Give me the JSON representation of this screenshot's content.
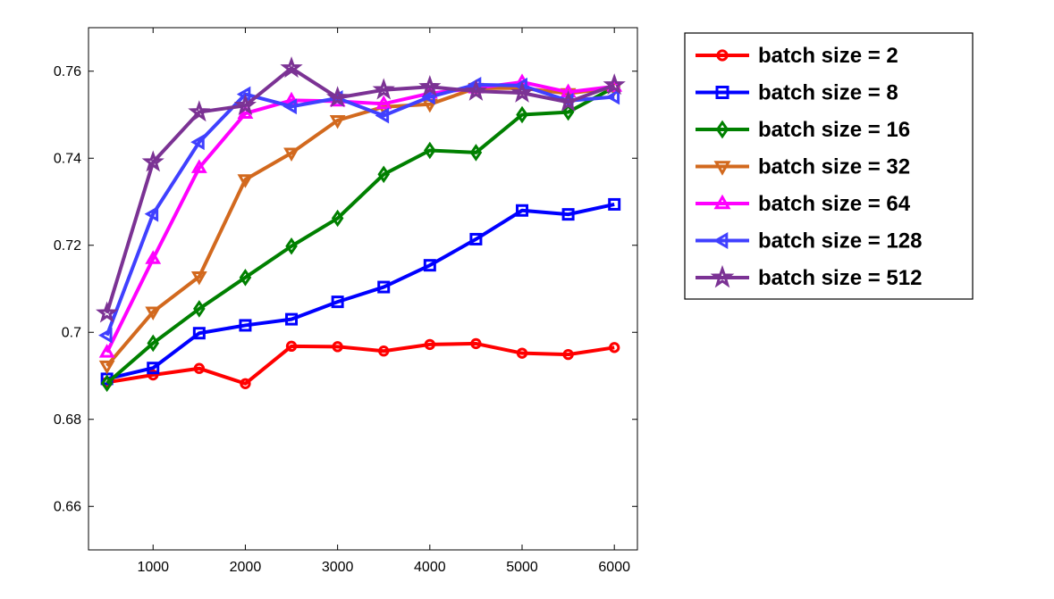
{
  "chart_data": {
    "type": "line",
    "title": "",
    "xlabel": "",
    "ylabel": "",
    "x": [
      500,
      1000,
      1500,
      2000,
      2500,
      3000,
      3500,
      4000,
      4500,
      5000,
      5500,
      6000
    ],
    "xlim": [
      300,
      6250
    ],
    "ylim": [
      0.65,
      0.77
    ],
    "xticks": [
      1000,
      2000,
      3000,
      4000,
      5000,
      6000
    ],
    "yticks": [
      0.66,
      0.68,
      0.7,
      0.72,
      0.74,
      0.76
    ],
    "xtick_labels": [
      "1000",
      "2000",
      "3000",
      "4000",
      "5000",
      "6000"
    ],
    "ytick_labels": [
      "0.66",
      "0.68",
      "0.7",
      "0.72",
      "0.74",
      "0.76"
    ],
    "grid": false,
    "legend_position": "outside-top-right",
    "series": [
      {
        "name": "batch size = 2",
        "color": "#ff0000",
        "marker": "circle",
        "values": [
          0.6885,
          0.6902,
          0.6917,
          0.6882,
          0.6968,
          0.6967,
          0.6957,
          0.6972,
          0.6974,
          0.6952,
          0.6949,
          0.6965
        ]
      },
      {
        "name": "batch size = 8",
        "color": "#0000ff",
        "marker": "square",
        "values": [
          0.6893,
          0.6918,
          0.6998,
          0.7016,
          0.703,
          0.707,
          0.7104,
          0.7154,
          0.7214,
          0.728,
          0.7271,
          0.7294
        ]
      },
      {
        "name": "batch size = 16",
        "color": "#008000",
        "marker": "diamond",
        "values": [
          0.6883,
          0.6975,
          0.7054,
          0.7126,
          0.7198,
          0.7262,
          0.7363,
          0.7418,
          0.7413,
          0.75,
          0.7506,
          0.7563
        ]
      },
      {
        "name": "batch size = 32",
        "color": "#d2691e",
        "marker": "triangle-down",
        "values": [
          0.6923,
          0.7047,
          0.7128,
          0.7351,
          0.7412,
          0.7487,
          0.7518,
          0.7524,
          0.7561,
          0.7561,
          0.7549,
          0.7562
        ]
      },
      {
        "name": "batch size = 64",
        "color": "#ff00ff",
        "marker": "triangle-up",
        "values": [
          0.6954,
          0.7169,
          0.7378,
          0.7503,
          0.7533,
          0.7531,
          0.7525,
          0.7549,
          0.7561,
          0.7575,
          0.7552,
          0.7565
        ]
      },
      {
        "name": "batch size = 128",
        "color": "#4040ff",
        "marker": "triangle-left",
        "values": [
          0.6993,
          0.7272,
          0.7437,
          0.7547,
          0.7519,
          0.7538,
          0.7498,
          0.7541,
          0.7569,
          0.7567,
          0.7532,
          0.7541
        ]
      },
      {
        "name": "batch size = 512",
        "color": "#7b3294",
        "marker": "star",
        "values": [
          0.7044,
          0.7391,
          0.7506,
          0.7521,
          0.7607,
          0.7539,
          0.7557,
          0.7564,
          0.7554,
          0.755,
          0.7529,
          0.7568
        ]
      }
    ]
  }
}
